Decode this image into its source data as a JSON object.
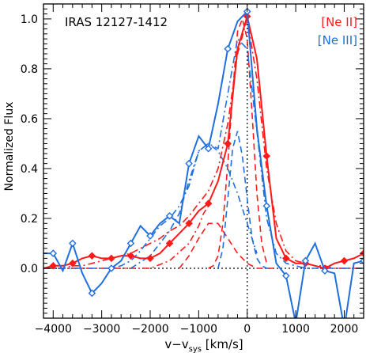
{
  "chart_data": {
    "type": "line",
    "title": "IRAS 12127-1412",
    "xlabel": "v−v",
    "xlabel_sub": "sys",
    "xlabel_unit": " [km/s]",
    "ylabel": "Normalized Flux",
    "xlim": [
      -4200,
      2400
    ],
    "ylim": [
      -0.2,
      1.06
    ],
    "xticks": [
      -4000,
      -3000,
      -2000,
      -1000,
      0,
      1000,
      2000
    ],
    "yticks": [
      0.0,
      0.2,
      0.4,
      0.6,
      0.8,
      1.0
    ],
    "legend": {
      "placement": "top-right",
      "entries": [
        "[Ne II]",
        "[Ne III]"
      ]
    },
    "series": [
      {
        "name": "[Ne II]",
        "color": "#ff1a1a",
        "marker": "diamond",
        "x": [
          -4200,
          -4000,
          -3800,
          -3600,
          -3400,
          -3200,
          -3000,
          -2800,
          -2600,
          -2400,
          -2200,
          -2000,
          -1800,
          -1600,
          -1400,
          -1200,
          -1000,
          -800,
          -600,
          -400,
          -200,
          0,
          200,
          400,
          600,
          800,
          1000,
          1200,
          1400,
          1600,
          1800,
          2000,
          2200,
          2400
        ],
        "y": [
          0.0,
          0.01,
          0.01,
          0.02,
          0.04,
          0.05,
          0.04,
          0.04,
          0.05,
          0.05,
          0.04,
          0.04,
          0.06,
          0.1,
          0.14,
          0.18,
          0.23,
          0.26,
          0.35,
          0.5,
          0.88,
          1.01,
          0.84,
          0.45,
          0.12,
          0.04,
          0.02,
          0.02,
          0.01,
          0.0,
          0.02,
          0.03,
          0.04,
          0.06
        ],
        "fit": [
          0.0,
          0.0,
          0.0,
          0.01,
          0.01,
          0.02,
          0.03,
          0.04,
          0.05,
          0.06,
          0.08,
          0.1,
          0.12,
          0.15,
          0.17,
          0.21,
          0.26,
          0.31,
          0.4,
          0.58,
          0.86,
          1.0,
          0.76,
          0.4,
          0.18,
          0.07,
          0.03,
          0.02,
          0.01,
          0.01,
          0.0,
          0.0,
          0.0,
          0.0
        ]
      },
      {
        "name": "[Ne III]",
        "color": "#1f6fe0",
        "marker": "diamond",
        "x": [
          -4200,
          -4000,
          -3800,
          -3600,
          -3400,
          -3200,
          -3000,
          -2800,
          -2600,
          -2400,
          -2200,
          -2000,
          -1800,
          -1600,
          -1400,
          -1200,
          -1000,
          -800,
          -600,
          -400,
          -200,
          0,
          200,
          400,
          600,
          800,
          1000,
          1200,
          1400,
          1600,
          1800,
          2000,
          2200,
          2400
        ],
        "y": [
          0.06,
          0.06,
          -0.01,
          0.1,
          -0.02,
          -0.1,
          -0.06,
          0.0,
          0.03,
          0.1,
          0.17,
          0.13,
          0.18,
          0.21,
          0.18,
          0.42,
          0.53,
          0.48,
          0.66,
          0.88,
          0.99,
          1.03,
          0.56,
          0.25,
          0.02,
          -0.03,
          -0.22,
          0.03,
          0.1,
          -0.01,
          -0.02,
          -0.24,
          0.02,
          0.03
        ],
        "fit": [
          0.0,
          0.0,
          0.0,
          0.0,
          0.0,
          0.0,
          0.0,
          0.0,
          0.01,
          0.03,
          0.07,
          0.12,
          0.17,
          0.2,
          0.25,
          0.33,
          0.47,
          0.5,
          0.48,
          0.7,
          0.92,
          0.88,
          0.55,
          0.2,
          0.06,
          0.02,
          0.01,
          0.0,
          0.0,
          0.0,
          0.0,
          0.0,
          0.0,
          0.0
        ]
      }
    ],
    "components": [
      {
        "name": "ne2-narrow",
        "color": "#ff1a1a",
        "dash": "8,5",
        "x": [
          -800,
          -700,
          -600,
          -500,
          -400,
          -300,
          -200,
          -100,
          0,
          100,
          200,
          300,
          400
        ],
        "y": [
          0.0,
          0.01,
          0.05,
          0.18,
          0.42,
          0.7,
          0.95,
          1.0,
          0.92,
          0.62,
          0.3,
          0.1,
          0.02
        ]
      },
      {
        "name": "ne2-broad",
        "color": "#ff1a1a",
        "dash": "8,5",
        "x": [
          -1400,
          -1200,
          -1000,
          -800,
          -600,
          -400,
          -200,
          0,
          200,
          400,
          600
        ],
        "y": [
          0.0,
          0.05,
          0.12,
          0.18,
          0.18,
          0.12,
          0.06,
          0.02,
          0.0,
          0.0,
          0.0
        ]
      },
      {
        "name": "ne2-wing",
        "color": "#ff1a1a",
        "dash": "8,4,2,4",
        "x": [
          -4200,
          -3000,
          -2000,
          -1600,
          -1200,
          -1000,
          -900,
          -800
        ],
        "y": [
          0.0,
          0.0,
          0.0,
          0.03,
          0.1,
          0.17,
          0.22,
          0.25
        ]
      },
      {
        "name": "ne3-narrow",
        "color": "#1f6fe0",
        "dash": "8,5",
        "x": [
          -600,
          -500,
          -400,
          -300,
          -200,
          -100,
          0,
          100,
          200,
          300,
          400,
          500
        ],
        "y": [
          0.0,
          0.08,
          0.28,
          0.48,
          0.55,
          0.45,
          0.28,
          0.12,
          0.04,
          0.01,
          0.0,
          0.0
        ]
      },
      {
        "name": "ne3-broad",
        "color": "#1f6fe0",
        "dash": "8,4,2,4",
        "x": [
          -2400,
          -2000,
          -1800,
          -1600,
          -1400,
          -1200,
          -1000,
          -800,
          -600,
          -400,
          -200,
          0,
          200
        ],
        "y": [
          0.0,
          0.05,
          0.1,
          0.15,
          0.22,
          0.35,
          0.47,
          0.5,
          0.47,
          0.4,
          0.3,
          0.18,
          0.06
        ]
      }
    ],
    "reference_lines": {
      "x_zero": 0,
      "y_zero": 0,
      "style": "dotted"
    }
  }
}
